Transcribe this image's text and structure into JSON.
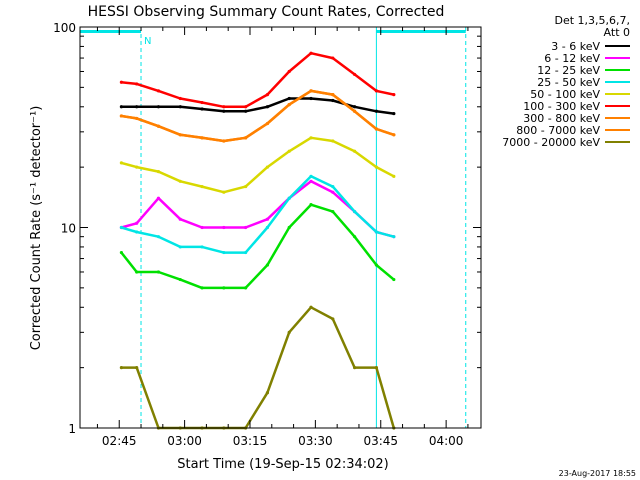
{
  "chart_data": {
    "type": "line",
    "title": "HESSI Observing Summary Count Rates, Corrected",
    "xlabel": "Start Time (19-Sep-15 02:34:02)",
    "ylabel": "Corrected Count Rate (s⁻¹ detector⁻¹)",
    "y_scale": "log",
    "ylim": [
      1,
      100
    ],
    "xlim_minutes": [
      2.0,
      94.0
    ],
    "x_start": "02:34:02",
    "xticks": [
      {
        "label": "02:45",
        "value": 11.0
      },
      {
        "label": "03:00",
        "value": 26.0
      },
      {
        "label": "03:15",
        "value": 41.0
      },
      {
        "label": "03:30",
        "value": 56.0
      },
      {
        "label": "03:45",
        "value": 71.0
      },
      {
        "label": "04:00",
        "value": 86.0
      }
    ],
    "yticks": [
      {
        "label": "1",
        "value": 1
      },
      {
        "label": "10",
        "value": 10
      },
      {
        "label": "100",
        "value": 100
      }
    ],
    "grid": false,
    "legend_position": "right-outside",
    "legend_header": [
      "Det 1,3,5,6,7,",
      "Att 0"
    ],
    "footer": "23-Aug-2017 18:55",
    "annotations": [
      {
        "kind": "flag",
        "text": "N",
        "x": 16.0
      }
    ],
    "flag_bars": [
      {
        "x_start": 2.0,
        "x_end": 16.0,
        "y": 95
      },
      {
        "x_start": 70.0,
        "x_end": 90.5,
        "y": 95
      }
    ],
    "vlines": [
      {
        "x": 16.0,
        "style": "dashed",
        "color": "#00e5e5"
      },
      {
        "x": 70.0,
        "style": "solid",
        "color": "#00e5e5"
      },
      {
        "x": 90.5,
        "style": "dashed",
        "color": "#00e5e5"
      }
    ],
    "x": [
      11.5,
      15.0,
      20.0,
      25.0,
      30.0,
      35.0,
      40.0,
      45.0,
      50.0,
      55.0,
      60.0,
      65.0,
      70.0,
      74.0
    ],
    "series": [
      {
        "name": "3 - 6 keV",
        "color": "#000000",
        "values": [
          40,
          40,
          40,
          40,
          39,
          38,
          38,
          40,
          44,
          44,
          43,
          40,
          38,
          37
        ]
      },
      {
        "name": "6 - 12 keV",
        "color": "#ff00ff",
        "values": [
          10,
          10.5,
          14,
          11,
          10,
          10,
          10,
          11,
          14,
          17,
          15,
          12,
          9.5,
          9
        ]
      },
      {
        "name": "12 - 25 keV",
        "color": "#00e000",
        "values": [
          7.5,
          6,
          6,
          5.5,
          5,
          5,
          5,
          6.5,
          10,
          13,
          12,
          9,
          6.5,
          5.5
        ]
      },
      {
        "name": "25 - 50 keV",
        "color": "#00e5e5",
        "values": [
          10,
          9.5,
          9,
          8,
          8,
          7.5,
          7.5,
          10,
          14,
          18,
          16,
          12,
          9.5,
          9
        ]
      },
      {
        "name": "50 - 100 keV",
        "color": "#d8d800",
        "values": [
          21,
          20,
          19,
          17,
          16,
          15,
          16,
          20,
          24,
          28,
          27,
          24,
          20,
          18
        ]
      },
      {
        "name": "100 - 300 keV",
        "color": "#ff0000",
        "values": [
          53,
          52,
          48,
          44,
          42,
          40,
          40,
          46,
          60,
          74,
          70,
          58,
          48,
          46
        ]
      },
      {
        "name": "300 - 800 keV",
        "color": "#ff8000",
        "values": [
          36,
          35,
          32,
          29,
          28,
          27,
          28,
          33,
          41,
          48,
          46,
          38,
          31,
          29
        ]
      },
      {
        "name": "800 - 7000 keV",
        "color": "#ff8000",
        "values": [
          36,
          35,
          32,
          29,
          28,
          27,
          28,
          33,
          41,
          48,
          46,
          38,
          31,
          29
        ]
      },
      {
        "name": "7000 - 20000 keV",
        "color": "#808000",
        "values": [
          2,
          2,
          1,
          1,
          1,
          1,
          1,
          1.5,
          3,
          4,
          3.5,
          2,
          2,
          1
        ]
      }
    ]
  }
}
